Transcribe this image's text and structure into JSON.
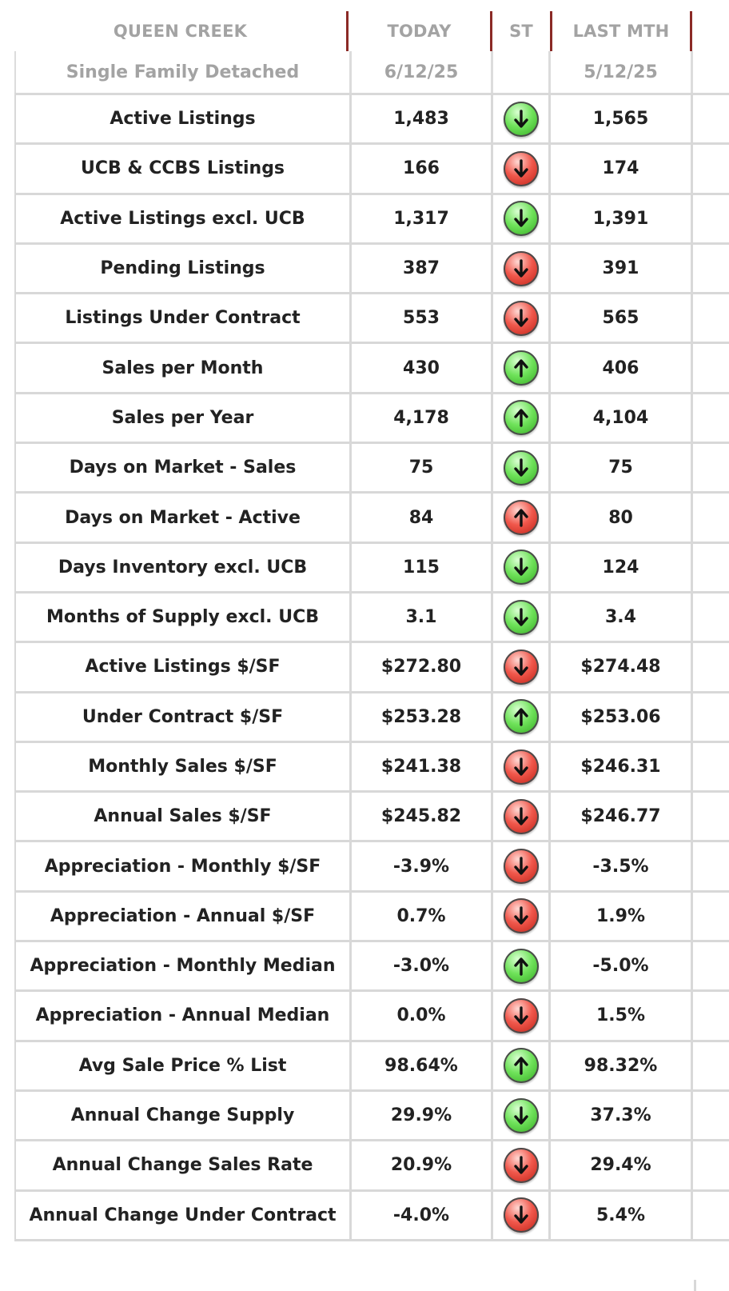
{
  "header": {
    "area": "QUEEN CREEK",
    "today": "TODAY",
    "st": "ST",
    "last": "LAST MTH",
    "type": "Single Family Detached",
    "today_date": "6/12/25",
    "last_date": "5/12/25"
  },
  "colors": {
    "header_separator": "#8b2a26",
    "header_text": "#a3a3a3",
    "green_arrow": "#4ccf35",
    "red_arrow": "#e0362a"
  },
  "rows": [
    {
      "label": "Active Listings",
      "today": "1,483",
      "direction": "down",
      "color": "green",
      "last": "1,565"
    },
    {
      "label": "UCB & CCBS Listings",
      "today": "166",
      "direction": "down",
      "color": "red",
      "last": "174"
    },
    {
      "label": "Active Listings excl. UCB",
      "today": "1,317",
      "direction": "down",
      "color": "green",
      "last": "1,391"
    },
    {
      "label": "Pending Listings",
      "today": "387",
      "direction": "down",
      "color": "red",
      "last": "391"
    },
    {
      "label": "Listings Under Contract",
      "today": "553",
      "direction": "down",
      "color": "red",
      "last": "565"
    },
    {
      "label": "Sales per Month",
      "today": "430",
      "direction": "up",
      "color": "green",
      "last": "406"
    },
    {
      "label": "Sales per Year",
      "today": "4,178",
      "direction": "up",
      "color": "green",
      "last": "4,104"
    },
    {
      "label": "Days on Market - Sales",
      "today": "75",
      "direction": "down",
      "color": "green",
      "last": "75"
    },
    {
      "label": "Days on Market - Active",
      "today": "84",
      "direction": "up",
      "color": "red",
      "last": "80"
    },
    {
      "label": "Days Inventory excl. UCB",
      "today": "115",
      "direction": "down",
      "color": "green",
      "last": "124"
    },
    {
      "label": "Months of Supply excl. UCB",
      "today": "3.1",
      "direction": "down",
      "color": "green",
      "last": "3.4"
    },
    {
      "label": "Active Listings $/SF",
      "today": "$272.80",
      "direction": "down",
      "color": "red",
      "last": "$274.48"
    },
    {
      "label": "Under Contract $/SF",
      "today": "$253.28",
      "direction": "up",
      "color": "green",
      "last": "$253.06"
    },
    {
      "label": "Monthly Sales $/SF",
      "today": "$241.38",
      "direction": "down",
      "color": "red",
      "last": "$246.31"
    },
    {
      "label": "Annual Sales $/SF",
      "today": "$245.82",
      "direction": "down",
      "color": "red",
      "last": "$246.77"
    },
    {
      "label": "Appreciation - Monthly $/SF",
      "today": "-3.9%",
      "direction": "down",
      "color": "red",
      "last": "-3.5%"
    },
    {
      "label": "Appreciation - Annual $/SF",
      "today": "0.7%",
      "direction": "down",
      "color": "red",
      "last": "1.9%"
    },
    {
      "label": "Appreciation - Monthly Median",
      "today": "-3.0%",
      "direction": "up",
      "color": "green",
      "last": "-5.0%"
    },
    {
      "label": "Appreciation - Annual Median",
      "today": "0.0%",
      "direction": "down",
      "color": "red",
      "last": "1.5%"
    },
    {
      "label": "Avg Sale Price % List",
      "today": "98.64%",
      "direction": "up",
      "color": "green",
      "last": "98.32%"
    },
    {
      "label": "Annual Change Supply",
      "today": "29.9%",
      "direction": "down",
      "color": "green",
      "last": "37.3%"
    },
    {
      "label": "Annual Change Sales Rate",
      "today": "20.9%",
      "direction": "down",
      "color": "red",
      "last": "29.4%"
    },
    {
      "label": "Annual Change Under Contract",
      "today": "-4.0%",
      "direction": "down",
      "color": "red",
      "last": "5.4%"
    }
  ]
}
